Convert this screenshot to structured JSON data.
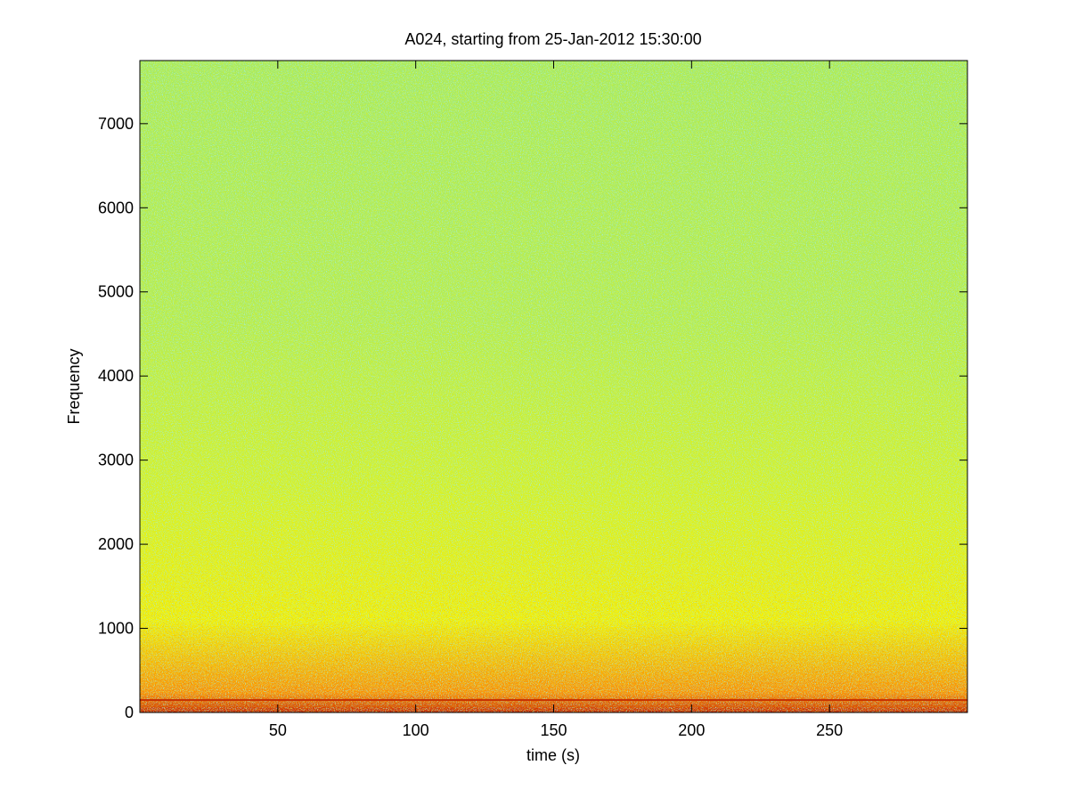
{
  "chart_data": {
    "type": "spectrogram",
    "title": "A024, starting from 25-Jan-2012 15:30:00",
    "x_label": "time (s)",
    "y_label": "Frequency",
    "xlim": [
      0,
      300
    ],
    "ylim": [
      0,
      7750
    ],
    "xticks": [
      50,
      100,
      150,
      200,
      250
    ],
    "yticks": [
      0,
      1000,
      2000,
      3000,
      4000,
      5000,
      6000,
      7000
    ],
    "colors": [
      "#c81e00",
      "#ff8c00",
      "#f5f000",
      "#d2f02a",
      "#b4ec50",
      "#a8ea5c"
    ]
  }
}
